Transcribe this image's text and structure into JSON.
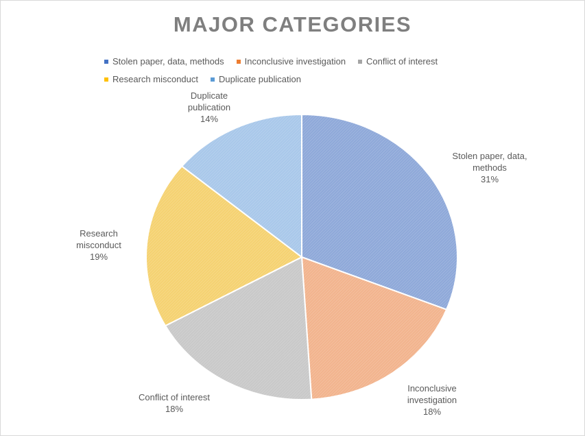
{
  "chart_data": {
    "type": "pie",
    "title": "MAJOR CATEGORIES",
    "categories": [
      "Stolen paper, data, methods",
      "Inconclusive investigation",
      "Conflict of interest",
      "Research misconduct",
      "Duplicate publication"
    ],
    "values": [
      31,
      18,
      18,
      19,
      14
    ],
    "value_labels": [
      "31%",
      "18%",
      "18%",
      "19%",
      "14%"
    ],
    "slice_label_lines": [
      [
        "Stolen paper, data,",
        "methods",
        "31%"
      ],
      [
        "Inconclusive",
        "investigation",
        "18%"
      ],
      [
        "Conflict of interest",
        "18%"
      ],
      [
        "Research",
        "misconduct",
        "19%"
      ],
      [
        "Duplicate",
        "publication",
        "14%"
      ]
    ],
    "colors": [
      "#8fa9d9",
      "#f2b48e",
      "#c9c9c9",
      "#f5d272",
      "#a9c8ea"
    ],
    "legend_position": "top",
    "start_angle_deg": 0,
    "direction": "clockwise"
  }
}
